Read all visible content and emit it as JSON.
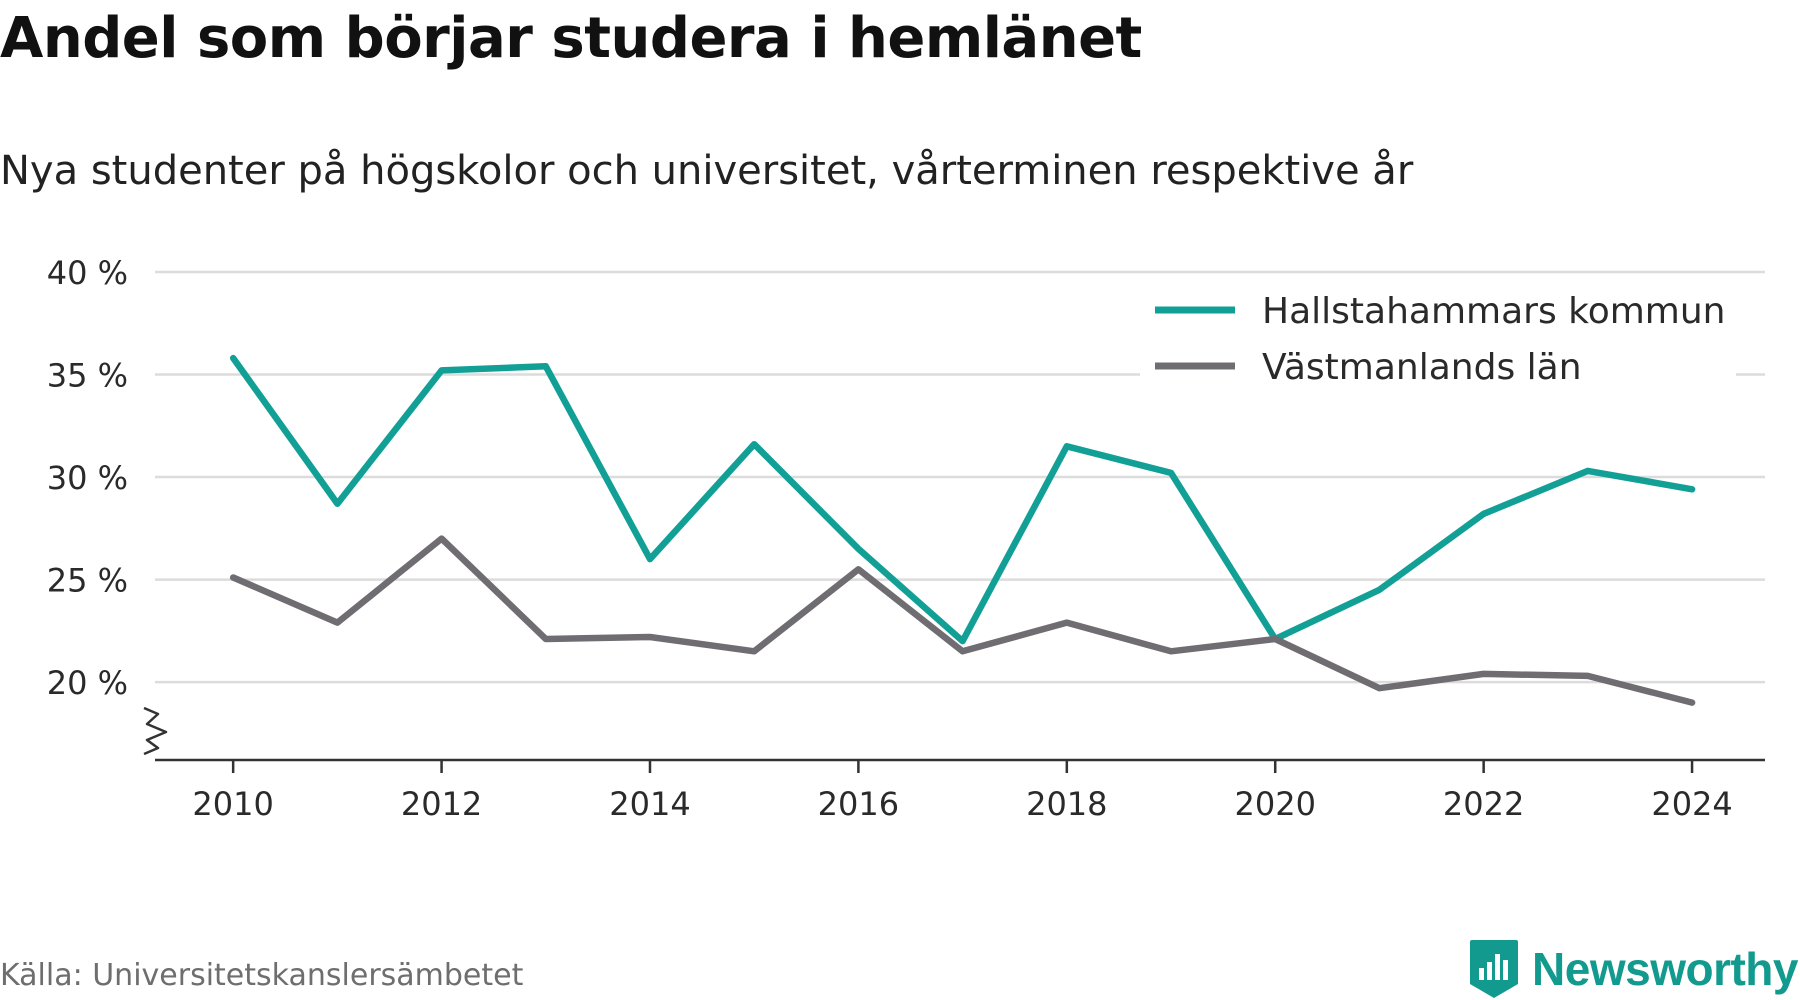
{
  "title": "Andel som börjar studera i hemlänet",
  "subtitle": "Nya studenter på högskolor och universitet, vårterminen respektive år",
  "source": "Källa: Universitetskanslersämbetet",
  "brand": "Newsworthy",
  "colors": {
    "hallstahammar": "#12a096",
    "vastmanland": "#6f6d72",
    "grid": "#dcdcdc",
    "axis": "#333333",
    "brand": "#129a8e"
  },
  "chart_data": {
    "type": "line",
    "x": [
      2010,
      2011,
      2012,
      2013,
      2014,
      2015,
      2016,
      2017,
      2018,
      2019,
      2020,
      2021,
      2022,
      2023,
      2024
    ],
    "series": [
      {
        "name": "Hallstahammars kommun",
        "color": "#12a096",
        "values": [
          35.8,
          28.7,
          35.2,
          35.4,
          26.0,
          31.6,
          26.5,
          22.0,
          31.5,
          30.2,
          22.1,
          24.5,
          28.2,
          30.3,
          29.4
        ]
      },
      {
        "name": "Västmanlands län",
        "color": "#6f6d72",
        "values": [
          25.1,
          22.9,
          27.0,
          22.1,
          22.2,
          21.5,
          25.5,
          21.5,
          22.9,
          21.5,
          22.1,
          19.7,
          20.4,
          20.3,
          19.0
        ]
      }
    ],
    "xticks": [
      2010,
      2012,
      2014,
      2016,
      2018,
      2020,
      2022,
      2024
    ],
    "xtick_labels": [
      "2010",
      "2012",
      "2014",
      "2016",
      "2018",
      "2020",
      "2022",
      "2024"
    ],
    "yticks": [
      20,
      25,
      30,
      35,
      40
    ],
    "ytick_labels": [
      "20 %",
      "25 %",
      "30 %",
      "35 %",
      "40 %"
    ],
    "ylim": [
      16.2,
      40
    ],
    "xlim": [
      2009.25,
      2024.7
    ],
    "axis_break": true,
    "grid": true,
    "legend_position": "top-right"
  }
}
